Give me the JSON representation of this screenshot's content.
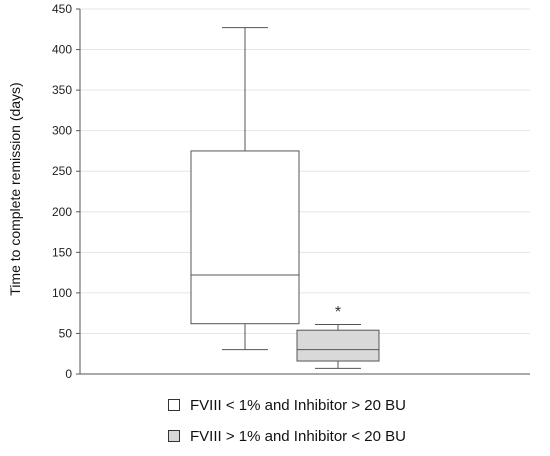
{
  "chart_data": {
    "type": "box",
    "ylabel": "Time to complete remission (days)",
    "xlabel": "",
    "ylim": [
      0,
      450
    ],
    "yticks": [
      0,
      50,
      100,
      150,
      200,
      250,
      300,
      350,
      400,
      450
    ],
    "grid": true,
    "legend_position": "bottom",
    "series": [
      {
        "name": "FVIII < 1% and Inhibitor > 20 BU",
        "whisker_low": 30,
        "q1": 62,
        "median": 122,
        "q3": 275,
        "whisker_high": 427,
        "outliers": [],
        "fill": "#ffffff"
      },
      {
        "name": "FVIII > 1% and Inhibitor < 20 BU",
        "whisker_low": 7,
        "q1": 16,
        "median": 30,
        "q3": 54,
        "whisker_high": 61,
        "outliers": [
          80
        ],
        "fill": "#d9d9d9"
      }
    ]
  }
}
